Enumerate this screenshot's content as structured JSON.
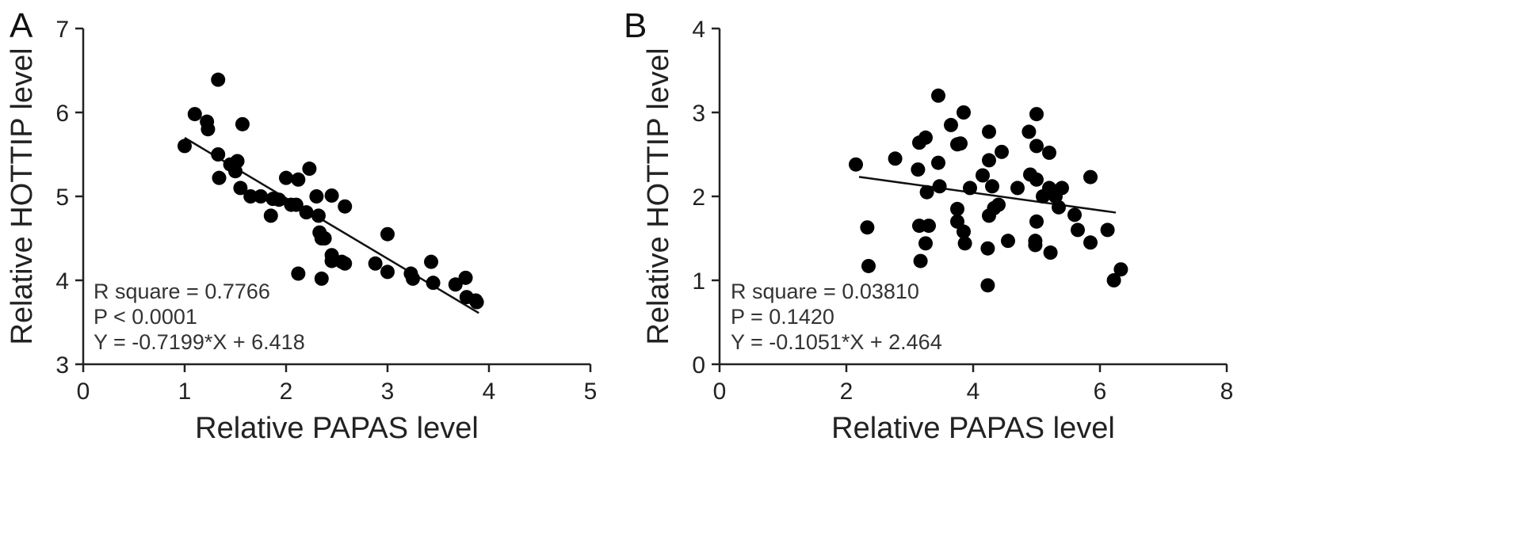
{
  "chart_data": [
    {
      "panel": "A",
      "type": "scatter",
      "xlabel": "Relative PAPAS level",
      "ylabel": "Relative HOTTIP level",
      "xlim": [
        0,
        5
      ],
      "ylim": [
        3,
        7
      ],
      "xticks": [
        "0",
        "1",
        "2",
        "3",
        "4",
        "5"
      ],
      "yticks": [
        "3",
        "4",
        "5",
        "6",
        "7"
      ],
      "stats": [
        "R square = 0.7766",
        "P < 0.0001",
        "Y = -0.7199*X + 6.418"
      ],
      "fit": {
        "slope": -0.7199,
        "intercept": 6.418,
        "x_range": [
          1.0,
          3.9
        ]
      },
      "points": [
        [
          1.0,
          5.6
        ],
        [
          1.1,
          5.98
        ],
        [
          1.22,
          5.89
        ],
        [
          1.23,
          5.8
        ],
        [
          1.33,
          6.39
        ],
        [
          1.57,
          5.86
        ],
        [
          1.33,
          5.5
        ],
        [
          1.34,
          5.22
        ],
        [
          1.45,
          5.38
        ],
        [
          1.5,
          5.3
        ],
        [
          1.52,
          5.42
        ],
        [
          1.55,
          5.1
        ],
        [
          1.65,
          5.0
        ],
        [
          1.75,
          5.0
        ],
        [
          1.85,
          4.77
        ],
        [
          1.87,
          4.97
        ],
        [
          1.93,
          4.96
        ],
        [
          2.0,
          5.22
        ],
        [
          2.05,
          4.9
        ],
        [
          2.1,
          4.9
        ],
        [
          2.12,
          5.2
        ],
        [
          2.2,
          4.81
        ],
        [
          2.23,
          5.33
        ],
        [
          2.3,
          5.0
        ],
        [
          2.32,
          4.77
        ],
        [
          2.33,
          4.57
        ],
        [
          2.35,
          4.5
        ],
        [
          2.38,
          4.5
        ],
        [
          2.45,
          5.01
        ],
        [
          2.45,
          4.3
        ],
        [
          2.45,
          4.23
        ],
        [
          2.55,
          4.22
        ],
        [
          2.58,
          4.88
        ],
        [
          2.58,
          4.2
        ],
        [
          2.88,
          4.2
        ],
        [
          3.0,
          4.55
        ],
        [
          3.0,
          4.1
        ],
        [
          2.12,
          4.08
        ],
        [
          2.35,
          4.02
        ],
        [
          3.23,
          4.08
        ],
        [
          3.25,
          4.02
        ],
        [
          3.43,
          4.22
        ],
        [
          3.45,
          3.97
        ],
        [
          3.67,
          3.95
        ],
        [
          3.77,
          4.03
        ],
        [
          3.78,
          3.8
        ],
        [
          3.87,
          3.76
        ],
        [
          3.88,
          3.74
        ]
      ]
    },
    {
      "panel": "B",
      "type": "scatter",
      "xlabel": "Relative PAPAS level",
      "ylabel": "Relative HOTTIP level",
      "xlim": [
        0,
        8
      ],
      "ylim": [
        0,
        4
      ],
      "xticks": [
        "0",
        "2",
        "4",
        "6",
        "8"
      ],
      "yticks": [
        "0",
        "1",
        "2",
        "3",
        "4"
      ],
      "stats": [
        "R square = 0.03810",
        "P = 0.1420",
        "Y = -0.1051*X + 2.464"
      ],
      "fit": {
        "slope": -0.1051,
        "intercept": 2.464,
        "x_range": [
          2.2,
          6.25
        ]
      },
      "points": [
        [
          2.15,
          2.38
        ],
        [
          2.33,
          1.63
        ],
        [
          2.35,
          1.17
        ],
        [
          2.77,
          2.45
        ],
        [
          3.13,
          2.32
        ],
        [
          3.15,
          2.64
        ],
        [
          3.25,
          2.7
        ],
        [
          3.27,
          2.05
        ],
        [
          3.15,
          1.65
        ],
        [
          3.3,
          1.65
        ],
        [
          3.25,
          1.44
        ],
        [
          3.17,
          1.23
        ],
        [
          3.45,
          3.2
        ],
        [
          3.45,
          2.4
        ],
        [
          3.47,
          2.12
        ],
        [
          3.65,
          2.85
        ],
        [
          3.75,
          2.62
        ],
        [
          3.8,
          2.63
        ],
        [
          3.75,
          1.85
        ],
        [
          3.75,
          1.7
        ],
        [
          3.85,
          1.58
        ],
        [
          3.87,
          1.44
        ],
        [
          3.85,
          3.0
        ],
        [
          3.95,
          2.1
        ],
        [
          4.15,
          2.25
        ],
        [
          4.25,
          2.77
        ],
        [
          4.25,
          2.43
        ],
        [
          4.3,
          2.12
        ],
        [
          4.25,
          1.77
        ],
        [
          4.33,
          1.86
        ],
        [
          4.4,
          1.9
        ],
        [
          4.45,
          2.53
        ],
        [
          4.55,
          1.47
        ],
        [
          4.23,
          1.38
        ],
        [
          4.23,
          0.94
        ],
        [
          4.7,
          2.1
        ],
        [
          4.88,
          2.77
        ],
        [
          4.9,
          2.26
        ],
        [
          5.0,
          2.98
        ],
        [
          5.0,
          2.6
        ],
        [
          5.0,
          2.2
        ],
        [
          5.1,
          2.0
        ],
        [
          5.0,
          1.7
        ],
        [
          4.98,
          1.47
        ],
        [
          4.98,
          1.42
        ],
        [
          5.2,
          2.52
        ],
        [
          5.2,
          2.1
        ],
        [
          5.3,
          2.0
        ],
        [
          5.35,
          1.87
        ],
        [
          5.4,
          2.1
        ],
        [
          5.22,
          1.33
        ],
        [
          5.6,
          1.78
        ],
        [
          5.65,
          1.6
        ],
        [
          5.85,
          2.23
        ],
        [
          5.85,
          1.45
        ],
        [
          6.12,
          1.6
        ],
        [
          6.22,
          1.0
        ],
        [
          6.33,
          1.13
        ]
      ]
    }
  ]
}
